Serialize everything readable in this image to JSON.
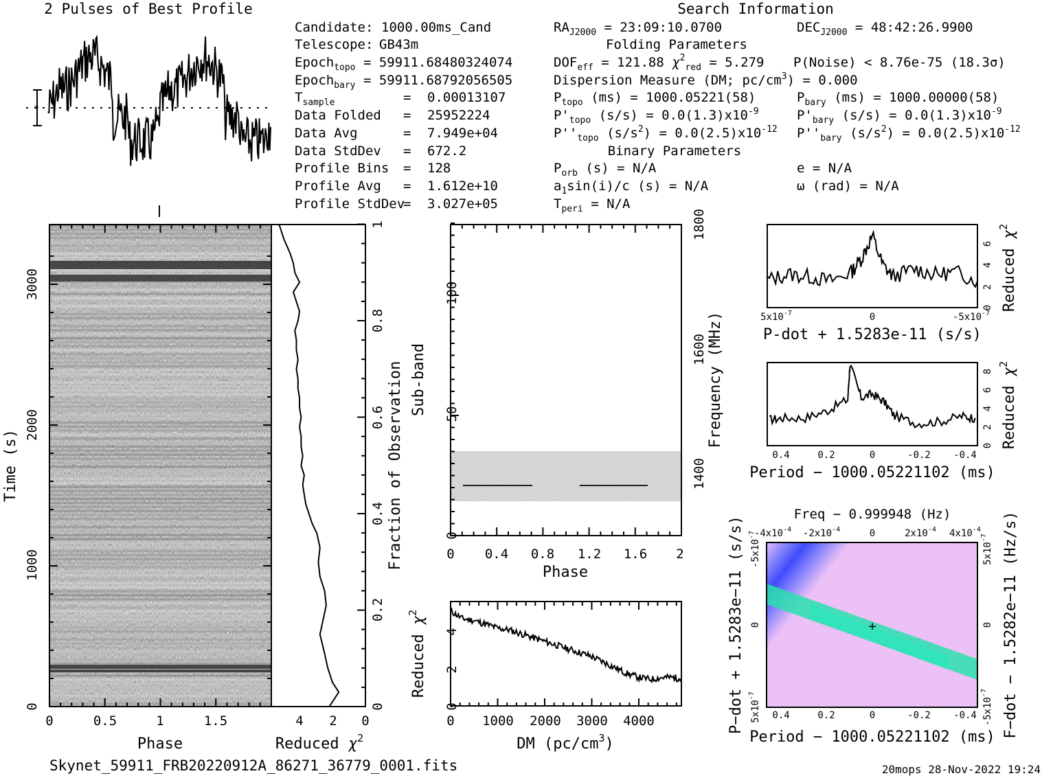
{
  "header": {
    "profile_title": "2 Pulses of Best Profile",
    "search_title": "Search Information",
    "folding_title": "Folding Parameters",
    "binary_title": "Binary Parameters"
  },
  "left_info": [
    [
      "Candidate:",
      "1000.00ms_Cand"
    ],
    [
      "Telescope:",
      "GB43m"
    ],
    [
      "Epoch_topo =",
      "59911.68480324074"
    ],
    [
      "Epoch_bary =",
      "59911.68792056505"
    ],
    [
      "T_sample =",
      "0.00013107"
    ],
    [
      "Data Folded =",
      "25952224"
    ],
    [
      "Data Avg =",
      "7.949e+04"
    ],
    [
      "Data StdDev =",
      "672.2"
    ],
    [
      "Profile Bins =",
      "128"
    ],
    [
      "Profile Avg =",
      "1.612e+10"
    ],
    [
      "Profile StdDev =",
      "3.027e+05"
    ]
  ],
  "search_info": {
    "ra": "RA J2000 = 23:09:10.0700",
    "dec": "DEC J2000 = 48:42:26.9900",
    "dof": "DOF eff = 121.88",
    "chi2": "χ² red = 5.279",
    "pnoise": "P(Noise) < 8.76e-75",
    "sigma": "(18.3σ)",
    "dm": "Dispersion Measure (DM; pc/cm³) = 0.000",
    "p_topo": "P topo (ms) = 1000.05221(58)",
    "p_bary": "P bary (ms) = 1000.00000(58)",
    "pd_topo": "P' topo (s/s) = 0.0(1.3)x10⁻⁹",
    "pd_bary": "P' bary (s/s) = 0.0(1.3)x10⁻⁹",
    "pdd_topo": "P'' topo (s/s²) = 0.0(2.5)x10⁻¹²",
    "pdd_bary": "P'' bary (s/s²) = 0.0(2.5)x10⁻¹²",
    "porb": "P orb (s) = N/A",
    "e": "e = N/A",
    "a1": "a₁sin(i)/c (s) = N/A",
    "omega": "ω (rad) = N/A",
    "tperi": "T peri = N/A"
  },
  "footer": {
    "filename": "Skynet_59911_FRB20220912A_86271_36779_0001.fits",
    "stamp": "20mops 28-Nov-2022 19:24"
  },
  "chart_data": [
    {
      "type": "line",
      "panel": "profile",
      "title": "2 Pulses of Best Profile",
      "xlabel": "",
      "ylabel": "",
      "xlim": [
        0,
        2
      ],
      "note": "Two repeated pulse profiles; high broad plateau around phase 0.1-0.7 and 1.1-1.7, low around 0.75-0.95 and 1.75-1.95"
    },
    {
      "type": "heatmap",
      "panel": "time-phase",
      "xlabel": "Phase",
      "ylabel": "Time (s)",
      "xticks": [
        "0",
        "0.5",
        "1",
        "1.5"
      ],
      "yticks": [
        "0",
        "1000",
        "2000",
        "3000"
      ],
      "xlim": [
        0,
        2
      ],
      "ylim": [
        0,
        3350
      ]
    },
    {
      "type": "line",
      "panel": "reduced-chi2-vs-fraction",
      "xlabel": "Reduced χ²",
      "ylabel": "Fraction of Observation",
      "xticks": [
        "4",
        "2",
        "0"
      ],
      "yticks": [
        "0",
        "0.2",
        "0.4",
        "0.6",
        "0.8",
        "1"
      ],
      "x": [
        2.3,
        1.7,
        2.1,
        2.4,
        2.6,
        2.9,
        2.7,
        2.5,
        2.6,
        2.9,
        3.0,
        2.9,
        3.1,
        3.4,
        3.6,
        3.8,
        3.9,
        4.0,
        3.9,
        4.1,
        4.0,
        4.1,
        4.1,
        4.2,
        4.1,
        4.2,
        4.2,
        4.3,
        4.3,
        4.4,
        4.3,
        4.4,
        4.4,
        4.5,
        4.3,
        4.2,
        4.4,
        4.6,
        4.2,
        4.5,
        4.6,
        4.8,
        5.2,
        5.5
      ],
      "y": [
        0.0,
        0.03,
        0.05,
        0.08,
        0.11,
        0.15,
        0.18,
        0.21,
        0.24,
        0.27,
        0.3,
        0.33,
        0.36,
        0.38,
        0.4,
        0.42,
        0.44,
        0.46,
        0.48,
        0.5,
        0.52,
        0.54,
        0.56,
        0.58,
        0.6,
        0.62,
        0.64,
        0.66,
        0.68,
        0.7,
        0.72,
        0.74,
        0.76,
        0.78,
        0.8,
        0.82,
        0.84,
        0.86,
        0.88,
        0.9,
        0.92,
        0.94,
        0.97,
        1.0
      ],
      "xlim": [
        6.0,
        0
      ],
      "ylim": [
        0,
        1
      ]
    },
    {
      "type": "heatmap",
      "panel": "subband-phase",
      "xlabel": "Phase",
      "ylabel": "Sub-band",
      "y2label": "Frequency (MHz)",
      "xticks": [
        "0",
        "0.4",
        "0.8",
        "1.2",
        "1.6",
        "2"
      ],
      "yticks": [
        "0",
        "50",
        "100"
      ],
      "y2ticks": [
        "1400",
        "1600",
        "1800"
      ],
      "xlim": [
        0,
        2
      ],
      "ylim": [
        0,
        128
      ],
      "data_band": [
        14,
        35
      ],
      "trace_subband": 21,
      "traces": [
        [
          0.12,
          0.7
        ],
        [
          1.12,
          1.7
        ]
      ]
    },
    {
      "type": "line",
      "panel": "dm-curve",
      "xlabel": "DM (pc/cm³)",
      "ylabel": "Reduced χ²",
      "xticks": [
        "0",
        "1000",
        "2000",
        "3000",
        "4000"
      ],
      "yticks": [
        "0",
        "2",
        "4"
      ],
      "x": [
        0,
        250,
        500,
        750,
        1000,
        1250,
        1500,
        1750,
        2000,
        2250,
        2500,
        2750,
        3000,
        3250,
        3500,
        3750,
        4000,
        4250,
        4500,
        4750,
        4900
      ],
      "y": [
        5.0,
        4.6,
        4.5,
        4.3,
        4.1,
        4.0,
        3.8,
        3.6,
        3.4,
        3.2,
        3.0,
        2.8,
        2.6,
        2.3,
        2.0,
        1.7,
        1.5,
        1.4,
        1.5,
        1.5,
        1.4
      ],
      "xlim": [
        0,
        4900
      ],
      "ylim": [
        0,
        5.5
      ]
    },
    {
      "type": "line",
      "panel": "pdot-curve",
      "xlabel": "P-dot + 1.5283e-11 (s/s)",
      "ylabel": "Reduced χ²",
      "xticks": [
        "5x10⁻⁷",
        "0",
        "-5x10⁻⁷"
      ],
      "yticks": [
        "0",
        "2",
        "4",
        "6"
      ],
      "x": [
        5e-07,
        4e-07,
        3e-07,
        2e-07,
        1e-07,
        5e-08,
        0,
        -5e-08,
        -1e-07,
        -2e-07,
        -3e-07,
        -4e-07,
        -5e-07
      ],
      "y": [
        2.5,
        3.0,
        2.8,
        2.4,
        3.2,
        4.5,
        6.5,
        3.8,
        2.8,
        3.5,
        3.0,
        3.2,
        2.4
      ],
      "xlim": [
        5e-07,
        -5e-07
      ],
      "ylim": [
        0,
        7.5
      ]
    },
    {
      "type": "line",
      "panel": "period-curve",
      "xlabel": "Period - 1000.05221102 (ms)",
      "ylabel": "Reduced χ²",
      "xticks": [
        "0.4",
        "0.2",
        "0",
        "-0.2",
        "-0.4"
      ],
      "yticks": [
        "0",
        "2",
        "4",
        "6",
        "8"
      ],
      "x": [
        0.46,
        0.4,
        0.3,
        0.2,
        0.11,
        0.1,
        0.05,
        0,
        -0.05,
        -0.1,
        -0.2,
        -0.3,
        -0.4,
        -0.46
      ],
      "y": [
        2.8,
        3.0,
        3.0,
        3.8,
        5.0,
        8.8,
        5.2,
        5.6,
        4.8,
        3.2,
        2.4,
        2.6,
        3.2,
        3.0
      ],
      "xlim": [
        0.47,
        -0.47
      ],
      "ylim": [
        0,
        9
      ]
    },
    {
      "type": "heatmap",
      "panel": "period-pdot",
      "title": "Freq - 0.999948 (Hz)",
      "xlabel": "Period - 1000.05221102 (ms)",
      "ylabel": "P-dot + 1.5283e-11 (s/s)",
      "y2label": "F-dot - 1.5282e-11 (Hz/s)",
      "xticks": [
        "0.4",
        "0.2",
        "0",
        "-0.2",
        "-0.4"
      ],
      "x2ticks": [
        "-4x10⁻⁴",
        "-2x10⁻⁴",
        "0",
        "2x10⁻⁴",
        "4x10⁻⁴"
      ],
      "yticks": [
        "5x10⁻⁷",
        "0",
        "-5x10⁻⁷"
      ],
      "y2ticks": [
        "-5x10⁻⁷",
        "0",
        "5x10⁻⁷"
      ],
      "colors": [
        "#7878ff",
        "#1c30ff",
        "#00e8a0",
        "#f0c0f8"
      ]
    }
  ]
}
